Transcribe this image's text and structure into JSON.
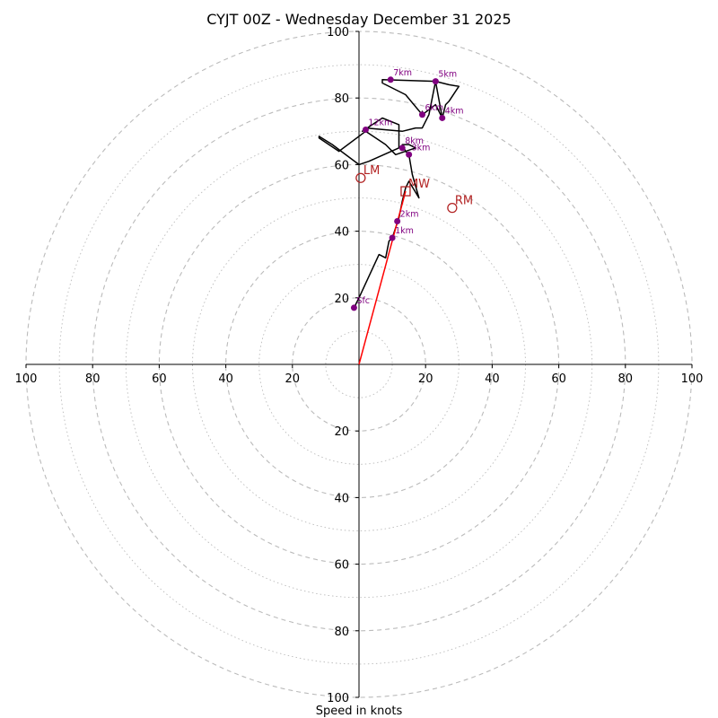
{
  "chart_data": {
    "type": "hodograph",
    "title": "CYJT 00Z - Wednesday December 31 2025",
    "xlabel": "Speed in knots",
    "rings": [
      10,
      20,
      30,
      40,
      50,
      60,
      70,
      80,
      90,
      100
    ],
    "tick_labels": [
      "20",
      "40",
      "60",
      "80",
      "100"
    ],
    "tick_values": [
      20,
      40,
      60,
      80,
      100
    ],
    "grid": true,
    "hodograph_trace": [
      [
        -1,
        17
      ],
      [
        -1,
        18
      ],
      [
        0,
        20
      ],
      [
        6,
        33
      ],
      [
        8,
        32
      ],
      [
        9,
        37
      ],
      [
        10,
        38
      ],
      [
        12,
        44
      ],
      [
        13,
        49
      ],
      [
        14,
        53
      ],
      [
        15,
        55
      ],
      [
        18,
        50
      ],
      [
        16,
        57
      ],
      [
        15,
        63
      ],
      [
        14,
        64
      ],
      [
        17,
        65
      ],
      [
        15,
        66
      ],
      [
        13,
        66
      ],
      [
        13,
        66
      ],
      [
        14,
        64
      ],
      [
        11,
        63
      ],
      [
        8,
        66
      ],
      [
        2,
        70
      ],
      [
        -6,
        64
      ],
      [
        -12,
        68
      ],
      [
        -12,
        68.5
      ],
      [
        -8,
        66
      ],
      [
        0,
        60
      ],
      [
        3,
        61
      ],
      [
        12,
        65
      ],
      [
        12,
        72
      ],
      [
        7,
        74
      ],
      [
        1,
        70
      ],
      [
        2,
        71
      ],
      [
        13,
        70
      ],
      [
        17,
        71
      ],
      [
        19,
        71
      ],
      [
        21,
        75
      ],
      [
        23,
        85
      ],
      [
        23,
        85
      ],
      [
        25,
        74
      ],
      [
        26,
        78
      ],
      [
        27,
        79
      ],
      [
        30,
        83.5
      ],
      [
        27,
        84
      ],
      [
        23,
        85
      ],
      [
        7,
        85.5
      ],
      [
        7,
        84.5
      ],
      [
        14,
        81
      ],
      [
        19,
        75
      ],
      [
        19,
        76
      ],
      [
        19,
        75
      ],
      [
        23,
        78
      ],
      [
        25,
        74
      ],
      [
        25,
        74
      ]
    ],
    "height_markers": [
      {
        "label": "Sfc",
        "u": -1.5,
        "v": 17
      },
      {
        "label": "1km",
        "u": 10,
        "v": 38
      },
      {
        "label": "2km",
        "u": 11.5,
        "v": 43
      },
      {
        "label": "3km",
        "u": 15,
        "v": 63
      },
      {
        "label": "4km",
        "u": 25,
        "v": 74
      },
      {
        "label": "5km",
        "u": 23,
        "v": 85
      },
      {
        "label": "6km",
        "u": 19,
        "v": 75
      },
      {
        "label": "7km",
        "u": 9.5,
        "v": 85.5
      },
      {
        "label": "8km",
        "u": 13,
        "v": 65
      },
      {
        "label": "12km",
        "u": 2,
        "v": 70.5
      }
    ],
    "motion_vectors": [
      {
        "label": "LM",
        "u": 0.5,
        "v": 56,
        "marker": "circle"
      },
      {
        "label": "RM",
        "u": 28,
        "v": 47,
        "marker": "circle"
      },
      {
        "label": "MW",
        "u": 14,
        "v": 52,
        "marker": "square"
      }
    ],
    "mean_wind_line": {
      "from": [
        0,
        0
      ],
      "to": [
        14,
        52
      ]
    },
    "colors": {
      "trace": "#000000",
      "marker": "#800080",
      "motion": "#b22222",
      "mean_line": "#ff0000",
      "grid": "#bbbbbb"
    }
  }
}
